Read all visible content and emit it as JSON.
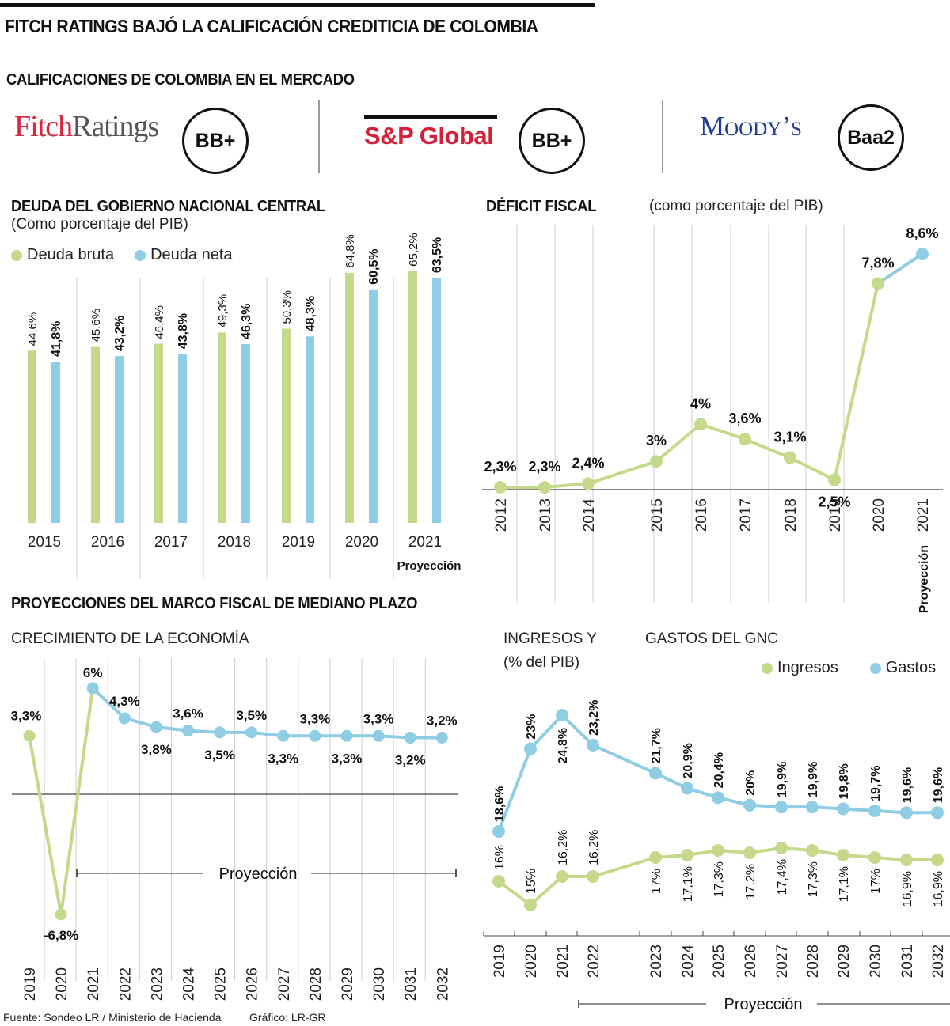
{
  "header": {
    "title": "FITCH RATINGS BAJÓ LA CALIFICACIÓN CREDITICIA DE COLOMBIA",
    "ratings_title": "CALIFICACIONES DE COLOMBIA EN EL MERCADO"
  },
  "ratings": [
    {
      "agency": "Fitch",
      "logo_part1": "Fitch",
      "logo_part2": "Ratings",
      "rating": "BB+"
    },
    {
      "agency": "S&P Global",
      "logo": "S&P Global",
      "rating": "BB+"
    },
    {
      "agency": "Moody's",
      "logo": "Moody’s",
      "rating": "Baa2"
    }
  ],
  "colors": {
    "green": "#c5d98a",
    "blue": "#8ecde3",
    "grid": "#cccccc",
    "axis": "#444444"
  },
  "projection_label": "Proyección",
  "section_mfmp": "PROYECCIONES DEL MARCO FISCAL DE MEDIANO PLAZO",
  "footer": {
    "source": "Fuente: Sondeo LR / Ministerio de Hacienda",
    "credit": "Gráfico: LR-GR"
  },
  "chart_data": [
    {
      "id": "deuda",
      "type": "bar",
      "title": "DEUDA DEL GOBIERNO NACIONAL CENTRAL",
      "subtitle": "(Como porcentaje del PIB)",
      "categories": [
        "2015",
        "2016",
        "2017",
        "2018",
        "2019",
        "2020",
        "2021"
      ],
      "category_notes": {
        "2021": "Proyección"
      },
      "series": [
        {
          "name": "Deuda bruta",
          "color": "#c5d98a",
          "values": [
            44.6,
            45.6,
            46.4,
            49.3,
            50.3,
            64.8,
            65.2
          ],
          "labels": [
            "44,6%",
            "45,6%",
            "46,4%",
            "49,3%",
            "50,3%",
            "64,8%",
            "65,2%"
          ]
        },
        {
          "name": "Deuda neta",
          "color": "#8ecde3",
          "values": [
            41.8,
            43.2,
            43.8,
            46.3,
            48.3,
            60.5,
            63.5
          ],
          "labels": [
            "41,8%",
            "43,2%",
            "43,8%",
            "46,3%",
            "48,3%",
            "60,5%",
            "63,5%"
          ]
        }
      ],
      "ylim": [
        0,
        70
      ],
      "grid": "vertical separators"
    },
    {
      "id": "deficit",
      "type": "line",
      "title": "DÉFICIT FISCAL",
      "subtitle": "(como porcentaje del PIB)",
      "x": [
        "2012",
        "2013",
        "2014",
        "2015",
        "2016",
        "2017",
        "2018",
        "2019",
        "2020",
        "2021"
      ],
      "x_notes": {
        "2021": "Proyección"
      },
      "values": [
        2.3,
        2.3,
        2.4,
        3.0,
        4.0,
        3.6,
        3.1,
        2.5,
        7.8,
        8.6
      ],
      "labels": [
        "2,3%",
        "2,3%",
        "2,4%",
        "3%",
        "4%",
        "3,6%",
        "3,1%",
        "2,5%",
        "7,8%",
        "8,6%"
      ],
      "projection_from_index": 9,
      "ylim": [
        0,
        9.5
      ],
      "grid": "vertical"
    },
    {
      "id": "crecimiento",
      "type": "line",
      "title": "CRECIMIENTO DE LA ECONOMÍA",
      "x": [
        "2019",
        "2020",
        "2021",
        "2022",
        "2023",
        "2024",
        "2025",
        "2026",
        "2027",
        "2028",
        "2029",
        "2030",
        "2031",
        "2032"
      ],
      "values": [
        3.3,
        -6.8,
        6.0,
        4.3,
        3.8,
        3.6,
        3.5,
        3.5,
        3.3,
        3.3,
        3.3,
        3.3,
        3.2,
        3.2
      ],
      "labels": [
        "3,3%",
        "-6,8%",
        "6%",
        "4,3%",
        "3,8%",
        "3,6%",
        "3,5%",
        "3,5%",
        "3,3%",
        "3,3%",
        "3,3%",
        "3,3%",
        "3,2%",
        "3,2%"
      ],
      "projection_from_index": 2,
      "ylim": [
        -8,
        7
      ],
      "grid": "vertical"
    },
    {
      "id": "ingresos_gastos",
      "type": "line",
      "title": "INGRESOS Y GASTOS DEL GNC",
      "title_part1": "INGRESOS Y",
      "title_part2": "GASTOS DEL GNC",
      "subtitle": "(% del PIB)",
      "x": [
        "2019",
        "2020",
        "2021",
        "2022",
        "2023",
        "2024",
        "2025",
        "2026",
        "2027",
        "2028",
        "2029",
        "2030",
        "2031",
        "2032"
      ],
      "series": [
        {
          "name": "Ingresos",
          "color": "#c5d98a",
          "values": [
            16.0,
            15.0,
            16.2,
            16.2,
            17.0,
            17.1,
            17.3,
            17.2,
            17.4,
            17.3,
            17.1,
            17.0,
            16.9,
            16.9
          ],
          "labels": [
            "16%",
            "15%",
            "16,2%",
            "16,2%",
            "17%",
            "17,1%",
            "17,3%",
            "17,2%",
            "17,4%",
            "17,3%",
            "17,1%",
            "17%",
            "16,9%",
            "16,9%"
          ]
        },
        {
          "name": "Gastos",
          "color": "#8ecde3",
          "values": [
            18.6,
            23.0,
            24.8,
            23.2,
            21.7,
            20.9,
            20.4,
            20.0,
            19.9,
            19.9,
            19.8,
            19.7,
            19.6,
            19.6
          ],
          "labels": [
            "18,6%",
            "23%",
            "24,8%",
            "23,2%",
            "21,7%",
            "20,9%",
            "20,4%",
            "20%",
            "19,9%",
            "19,9%",
            "19,8%",
            "19,7%",
            "19,6%",
            "19,6%"
          ]
        }
      ],
      "projection_from_index": 3,
      "ylim": [
        14,
        26
      ]
    }
  ]
}
